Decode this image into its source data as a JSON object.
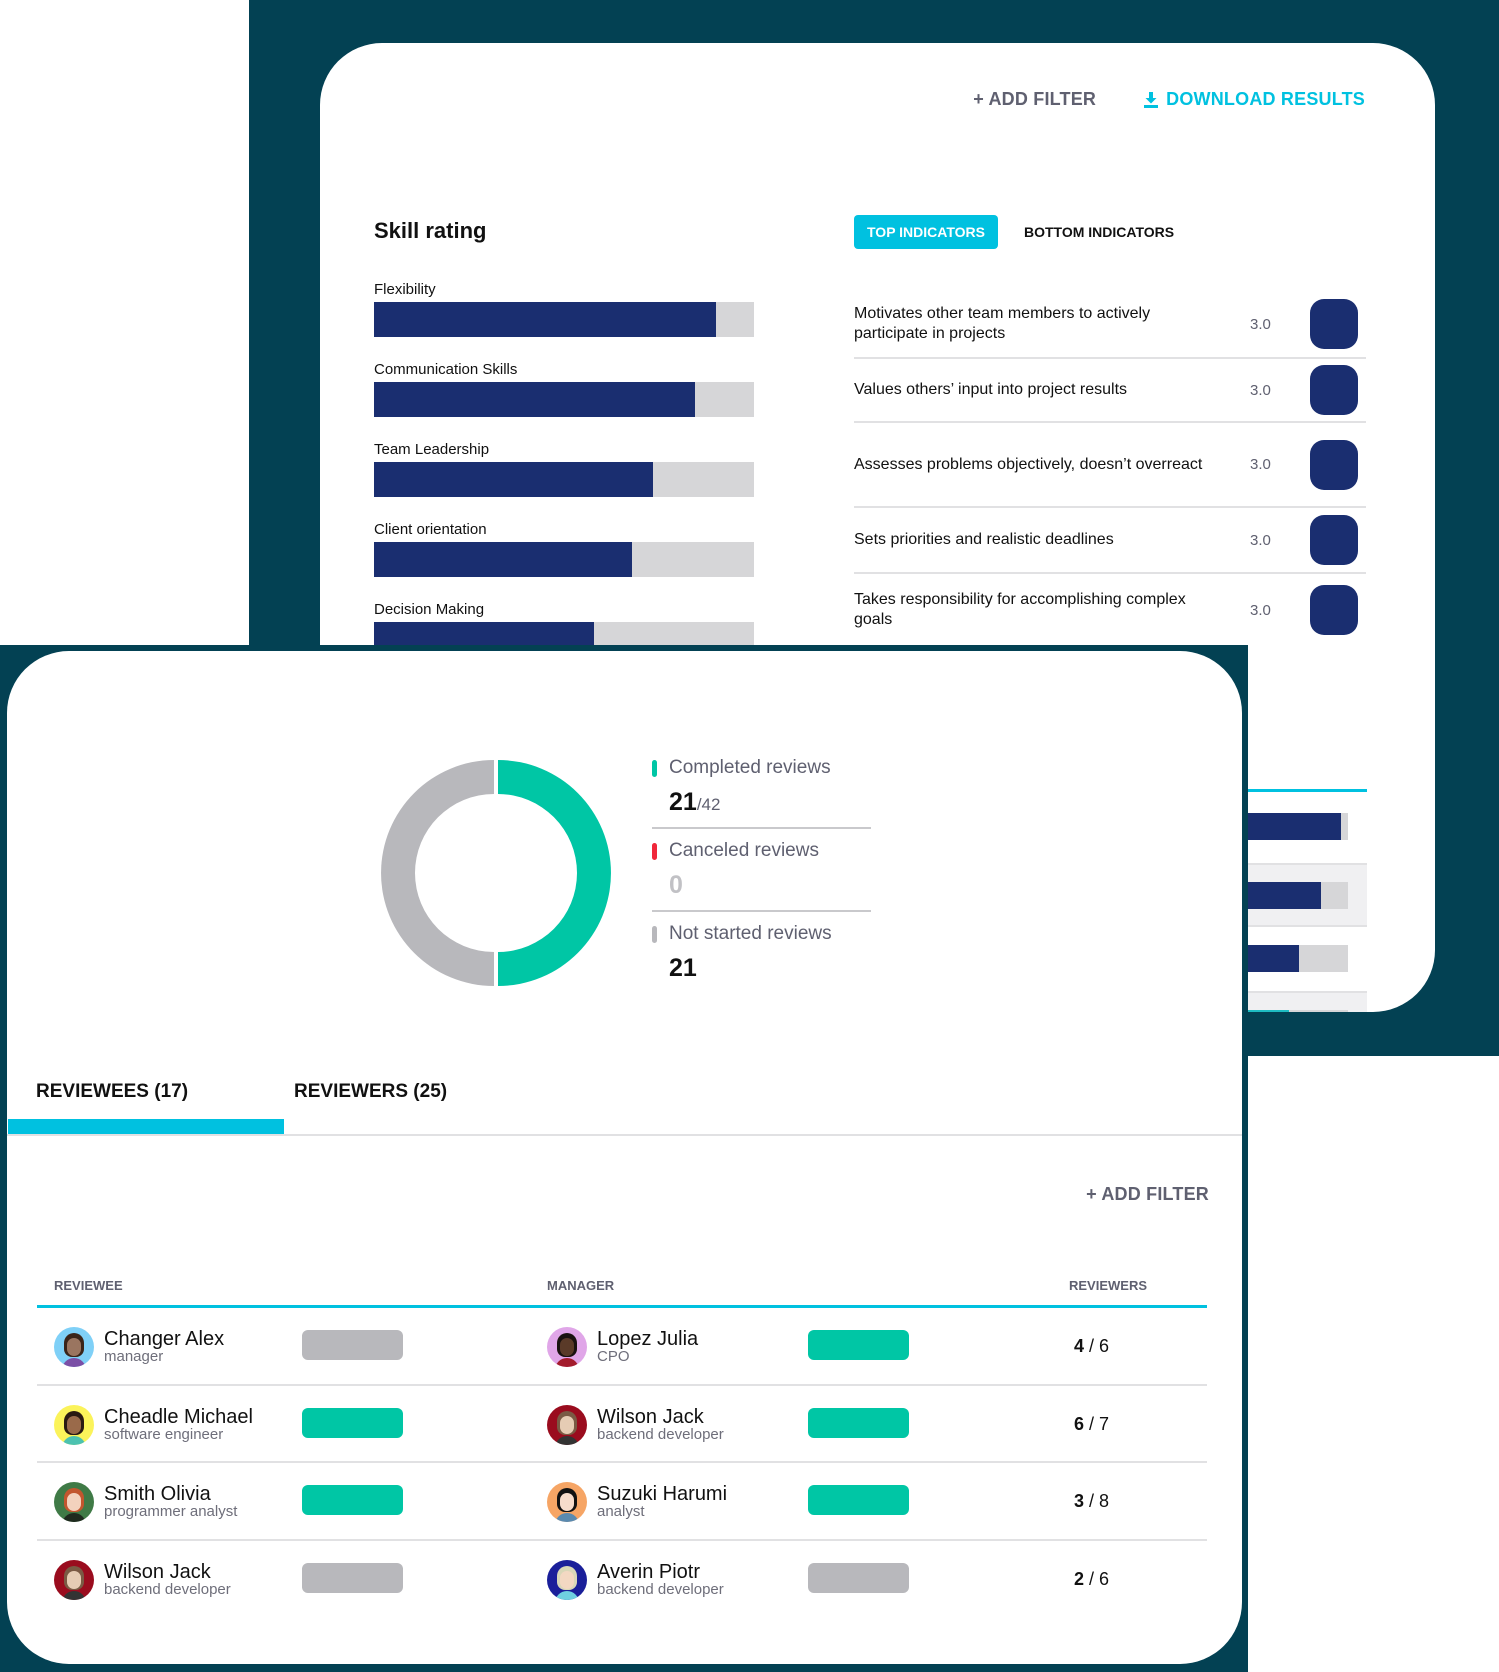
{
  "colors": {
    "dark_teal": "#034153",
    "accent_cyan": "#00c1e0",
    "navy_bar": "#1a2e70",
    "track_grey": "#d6d6d8",
    "green": "#00c6a5",
    "grey_status": "#b8b8bc",
    "red": "#f0273a"
  },
  "back_panel": {
    "add_filter_label": "+ ADD FILTER",
    "download_label": "DOWNLOAD RESULTS",
    "download_icon": "download-icon",
    "skill_rating": {
      "title": "Skill rating",
      "skills": [
        {
          "label": "Flexibility",
          "percent": 90
        },
        {
          "label": "Communication Skills",
          "percent": 84.5
        },
        {
          "label": "Team Leadership",
          "percent": 73.5
        },
        {
          "label": "Client orientation",
          "percent": 68
        },
        {
          "label": "Decision Making",
          "percent": 58
        }
      ]
    },
    "indicator_tabs": [
      {
        "label": "TOP INDICATORS",
        "active": true
      },
      {
        "label": "BOTTOM INDICATORS",
        "active": false
      }
    ],
    "indicators": [
      {
        "text": "Motivates other team members to actively participate in projects",
        "score": "3.0"
      },
      {
        "text": "Values others’ input into project results",
        "score": "3.0"
      },
      {
        "text": "Assesses problems objectively, doesn’t overreact",
        "score": "3.0"
      },
      {
        "text": "Sets priorities and realistic deadlines",
        "score": "3.0"
      },
      {
        "text": "Takes responsibility for accomplishing complex goals",
        "score": "3.0"
      }
    ]
  },
  "front_panel": {
    "chart_data": {
      "type": "donut",
      "segments": [
        {
          "label": "Completed reviews",
          "value": 21,
          "color": "#00c6a5"
        },
        {
          "label": "Not started reviews",
          "value": 21,
          "color": "#b8b8bc"
        }
      ],
      "total": 42
    },
    "legend": {
      "completed": {
        "label": "Completed reviews",
        "value": "21",
        "total": "/42"
      },
      "canceled": {
        "label": "Canceled reviews",
        "value": "0"
      },
      "not_started": {
        "label": "Not started reviews",
        "value": "21"
      }
    },
    "tabs": [
      {
        "label": "REVIEWEES (17)",
        "active": true
      },
      {
        "label": "REVIEWERS (25)",
        "active": false
      }
    ],
    "add_filter_label": "+ ADD FILTER",
    "table": {
      "headers": {
        "reviewee": "REVIEWEE",
        "manager": "MANAGER",
        "reviewers": "REVIEWERS"
      },
      "rows": [
        {
          "reviewee": {
            "name": "Changer Alex",
            "role": "manager",
            "status": "grey"
          },
          "manager": {
            "name": "Lopez Julia",
            "role": "CPO",
            "status": "green"
          },
          "done": "4",
          "total": "6"
        },
        {
          "reviewee": {
            "name": "Cheadle Michael",
            "role": "software engineer",
            "status": "green"
          },
          "manager": {
            "name": "Wilson Jack",
            "role": "backend developer",
            "status": "green"
          },
          "done": "6",
          "total": "7"
        },
        {
          "reviewee": {
            "name": "Smith Olivia",
            "role": "programmer analyst",
            "status": "green"
          },
          "manager": {
            "name": "Suzuki Harumi",
            "role": "analyst",
            "status": "green"
          },
          "done": "3",
          "total": "8"
        },
        {
          "reviewee": {
            "name": "Wilson Jack",
            "role": "backend developer",
            "status": "grey"
          },
          "manager": {
            "name": "Averin Piotr",
            "role": "backend developer",
            "status": "grey"
          },
          "done": "2",
          "total": "6"
        }
      ]
    }
  }
}
